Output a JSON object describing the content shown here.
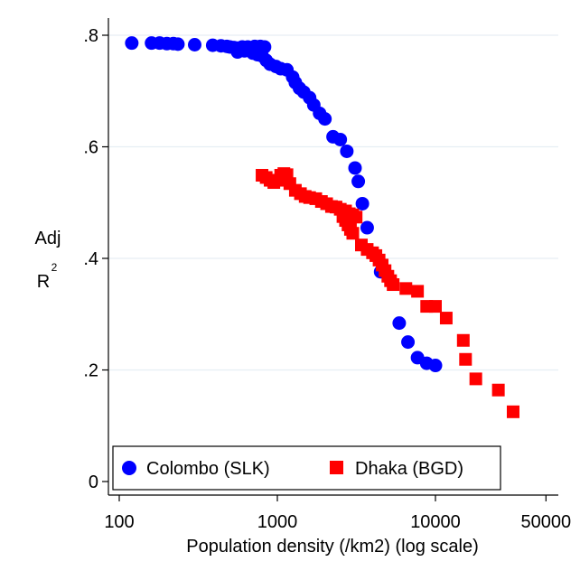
{
  "chart_data": {
    "type": "scatter",
    "xlabel": "Population density (/km2) (log scale)",
    "ylabel": "Adj",
    "ylabel_line2": "R",
    "ylabel_sup": "2",
    "x_scale": "log",
    "xlim": [
      100,
      50000
    ],
    "ylim": [
      0,
      0.8
    ],
    "x_ticks": [
      {
        "value": 100,
        "label": "100"
      },
      {
        "value": 1000,
        "label": "1000"
      },
      {
        "value": 10000,
        "label": "10000"
      },
      {
        "value": 50000,
        "label": "50000"
      }
    ],
    "y_ticks": [
      {
        "value": 0,
        "label": "0"
      },
      {
        "value": 0.2,
        "label": ".2"
      },
      {
        "value": 0.4,
        "label": ".4"
      },
      {
        "value": 0.6,
        "label": ".6"
      },
      {
        "value": 0.8,
        "label": ".8"
      }
    ],
    "grid": true,
    "legend_position": "bottom-inside",
    "series": [
      {
        "name": "Colombo (SLK)",
        "marker": "circle",
        "color": "#0000ff",
        "points": [
          [
            120,
            0.786
          ],
          [
            160,
            0.786
          ],
          [
            180,
            0.786
          ],
          [
            200,
            0.785
          ],
          [
            220,
            0.785
          ],
          [
            235,
            0.784
          ],
          [
            300,
            0.783
          ],
          [
            390,
            0.782
          ],
          [
            440,
            0.781
          ],
          [
            480,
            0.78
          ],
          [
            500,
            0.779
          ],
          [
            530,
            0.778
          ],
          [
            560,
            0.777
          ],
          [
            600,
            0.779
          ],
          [
            650,
            0.779
          ],
          [
            720,
            0.78
          ],
          [
            780,
            0.78
          ],
          [
            830,
            0.779
          ],
          [
            560,
            0.77
          ],
          [
            620,
            0.772
          ],
          [
            700,
            0.768
          ],
          [
            750,
            0.765
          ],
          [
            800,
            0.763
          ],
          [
            850,
            0.755
          ],
          [
            900,
            0.748
          ],
          [
            980,
            0.744
          ],
          [
            1050,
            0.74
          ],
          [
            1150,
            0.738
          ],
          [
            1250,
            0.725
          ],
          [
            1300,
            0.715
          ],
          [
            1380,
            0.705
          ],
          [
            1470,
            0.698
          ],
          [
            1600,
            0.688
          ],
          [
            1700,
            0.675
          ],
          [
            1850,
            0.66
          ],
          [
            2000,
            0.65
          ],
          [
            2250,
            0.618
          ],
          [
            2500,
            0.613
          ],
          [
            2750,
            0.592
          ],
          [
            3100,
            0.562
          ],
          [
            3250,
            0.538
          ],
          [
            3450,
            0.498
          ],
          [
            3700,
            0.455
          ],
          [
            4500,
            0.376
          ],
          [
            5900,
            0.284
          ],
          [
            6700,
            0.25
          ],
          [
            7700,
            0.222
          ],
          [
            8800,
            0.212
          ],
          [
            10000,
            0.208
          ]
        ]
      },
      {
        "name": "Dhaka (BGD)",
        "marker": "square",
        "color": "#ff0000",
        "points": [
          [
            800,
            0.549
          ],
          [
            850,
            0.545
          ],
          [
            900,
            0.54
          ],
          [
            950,
            0.536
          ],
          [
            1000,
            0.54
          ],
          [
            1050,
            0.549
          ],
          [
            1100,
            0.552
          ],
          [
            1150,
            0.55
          ],
          [
            1200,
            0.534
          ],
          [
            1300,
            0.522
          ],
          [
            1400,
            0.516
          ],
          [
            1500,
            0.511
          ],
          [
            1600,
            0.509
          ],
          [
            1750,
            0.507
          ],
          [
            1900,
            0.502
          ],
          [
            2050,
            0.498
          ],
          [
            2200,
            0.493
          ],
          [
            2350,
            0.492
          ],
          [
            2500,
            0.488
          ],
          [
            2600,
            0.475
          ],
          [
            2700,
            0.468
          ],
          [
            2800,
            0.46
          ],
          [
            2900,
            0.452
          ],
          [
            3000,
            0.445
          ],
          [
            2700,
            0.485
          ],
          [
            2850,
            0.48
          ],
          [
            3000,
            0.478
          ],
          [
            3150,
            0.474
          ],
          [
            3400,
            0.424
          ],
          [
            3700,
            0.416
          ],
          [
            4000,
            0.41
          ],
          [
            4200,
            0.405
          ],
          [
            4400,
            0.397
          ],
          [
            4600,
            0.388
          ],
          [
            4800,
            0.378
          ],
          [
            5000,
            0.368
          ],
          [
            5200,
            0.36
          ],
          [
            5400,
            0.353
          ],
          [
            6500,
            0.346
          ],
          [
            7700,
            0.341
          ],
          [
            8800,
            0.314
          ],
          [
            10000,
            0.314
          ],
          [
            11700,
            0.293
          ],
          [
            15000,
            0.253
          ],
          [
            15500,
            0.219
          ],
          [
            18000,
            0.184
          ],
          [
            25000,
            0.164
          ],
          [
            31000,
            0.125
          ]
        ]
      }
    ]
  }
}
